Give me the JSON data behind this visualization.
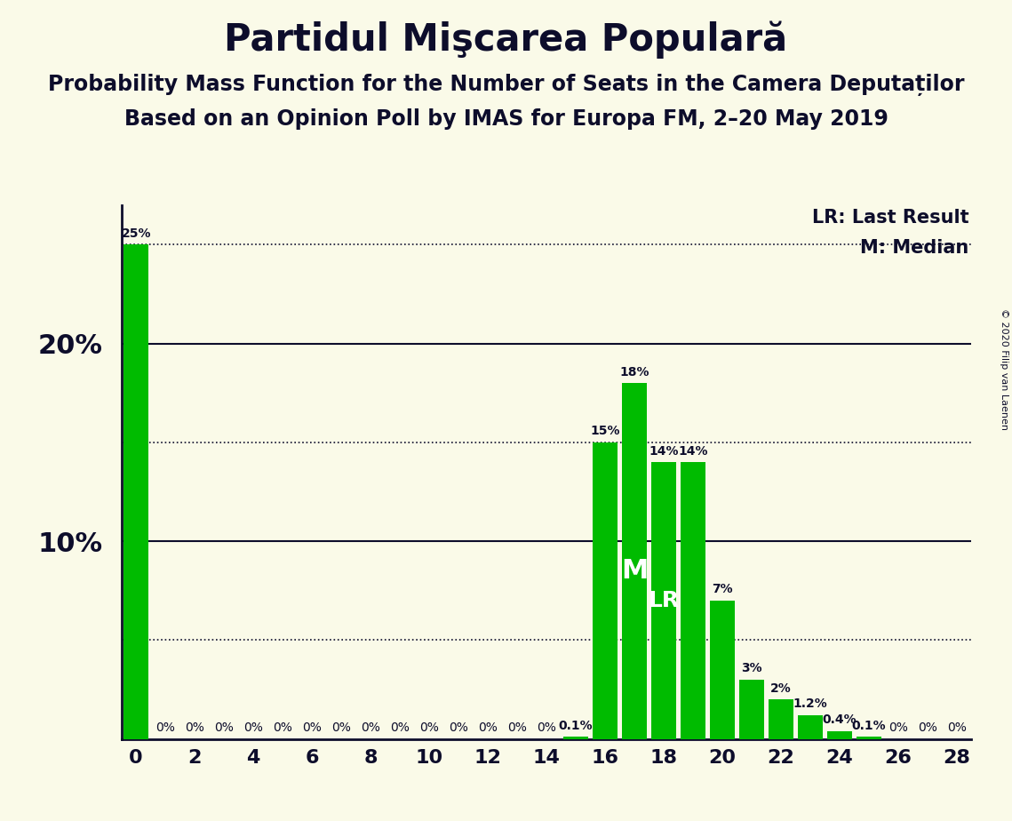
{
  "title": "Partidul Mişcarea Populară",
  "subtitle1": "Probability Mass Function for the Number of Seats in the Camera Deputaților",
  "subtitle2": "Based on an Opinion Poll by IMAS for Europa FM, 2–20 May 2019",
  "copyright": "© 2020 Filip van Laenen",
  "seats": [
    0,
    1,
    2,
    3,
    4,
    5,
    6,
    7,
    8,
    9,
    10,
    11,
    12,
    13,
    14,
    15,
    16,
    17,
    18,
    19,
    20,
    21,
    22,
    23,
    24,
    25,
    26,
    27,
    28
  ],
  "probabilities": [
    25,
    0,
    0,
    0,
    0,
    0,
    0,
    0,
    0,
    0,
    0,
    0,
    0,
    0,
    0,
    0.1,
    15,
    18,
    14,
    14,
    7,
    3,
    2,
    1.2,
    0.4,
    0.1,
    0,
    0,
    0
  ],
  "bar_color": "#00BB00",
  "background_color": "#FAFAE8",
  "median_seat": 17,
  "lr_seat": 18,
  "lr_label": "LR",
  "median_label": "M",
  "legend_lr": "LR: Last Result",
  "legend_m": "M: Median",
  "solid_lines": [
    10,
    20
  ],
  "dotted_lines": [
    5,
    15,
    25
  ],
  "ytick_labels": [
    10,
    20
  ],
  "xlim": [
    -0.5,
    28.5
  ],
  "ylim": [
    0,
    27
  ],
  "title_fontsize": 30,
  "subtitle_fontsize": 17,
  "bar_label_fontsize": 10,
  "axis_tick_fontsize": 16,
  "ytick_fontsize": 22,
  "legend_fontsize": 15,
  "copyright_fontsize": 8
}
